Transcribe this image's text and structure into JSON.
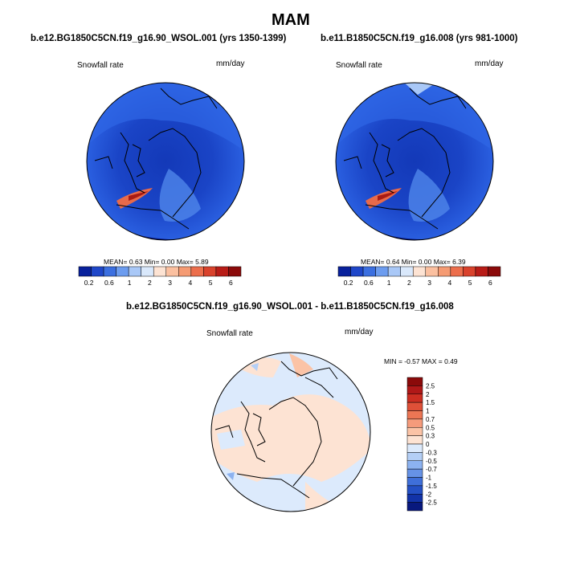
{
  "figure": {
    "season": "MAM"
  },
  "panels": [
    {
      "case": "b.e12.BG1850C5CN.f19_g16.90_WSOL.001 (yrs 1350-1399)",
      "variable": "Snowfall rate",
      "units": "mm/day",
      "stats": "MEAN=   0.63  Min=   0.00  Max=   5.89"
    },
    {
      "case": "b.e11.B1850C5CN.f19_g16.008 (yrs 981-1000)",
      "variable": "Snowfall rate",
      "units": "mm/day",
      "stats": "MEAN=   0.64  Min=   0.00  Max=   6.39"
    }
  ],
  "diff_panel": {
    "case": "b.e12.BG1850C5CN.f19_g16.90_WSOL.001 - b.e11.B1850C5CN.f19_g16.008",
    "variable": "Snowfall rate",
    "units": "mm/day",
    "stats": "MIN =  -0.57 MAX =   0.49"
  },
  "colorbar_main": {
    "labels": [
      "0.2",
      "0.6",
      "1",
      "2",
      "3",
      "4",
      "5",
      "6"
    ],
    "colors": [
      "#08219c",
      "#1f47c9",
      "#3b6fe0",
      "#6c9cef",
      "#a9c8f7",
      "#d9e8fb",
      "#fde3d3",
      "#fbc0a0",
      "#f59b73",
      "#ec6e4c",
      "#d9422c",
      "#b81c17",
      "#8b0a0a"
    ]
  },
  "colorbar_diff": {
    "labels": [
      "2.5",
      "2",
      "1.5",
      "1",
      "0.7",
      "0.5",
      "0.3",
      "0",
      "-0.3",
      "-0.5",
      "-0.7",
      "-1",
      "-1.5",
      "-2",
      "-2.5"
    ],
    "colors": [
      "#8b0a0a",
      "#b01818",
      "#cc2e22",
      "#df5038",
      "#ec7654",
      "#f59b7b",
      "#fbc3a6",
      "#fde3d3",
      "#dceafc",
      "#b4cff6",
      "#8cb2f0",
      "#6692e6",
      "#3f6fd9",
      "#2450c4",
      "#1233a8",
      "#08197e"
    ]
  }
}
